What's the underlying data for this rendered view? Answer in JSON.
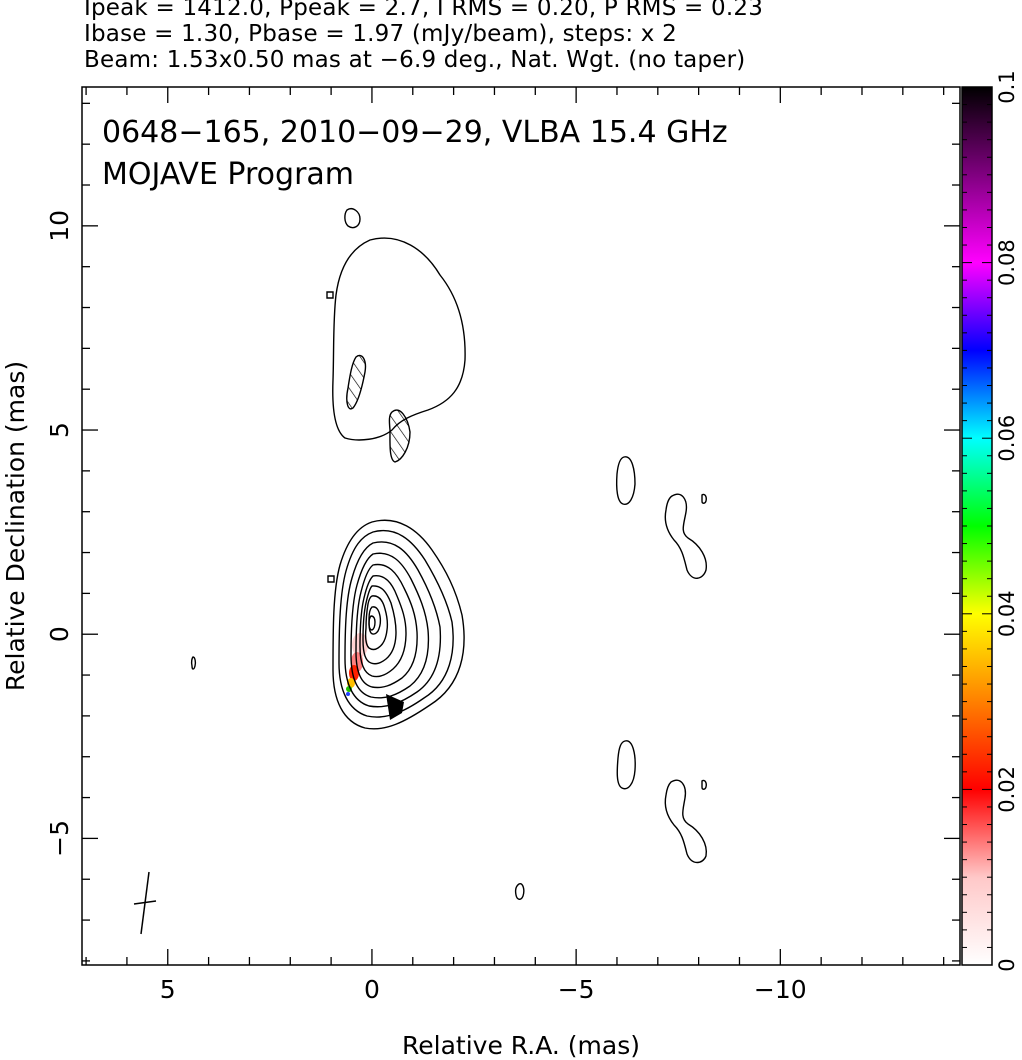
{
  "header": {
    "line1": "Ipeak = 1412.0, Ppeak = 2.7, I RMS = 0.20, P RMS = 0.23",
    "line2": "Ibase = 1.30, Pbase = 1.97 (mJy/beam), steps: x 2",
    "line3": "Beam: 1.53x0.50 mas at −6.9 deg., Nat. Wgt. (no taper)"
  },
  "chart_data": {
    "type": "contour",
    "title_line1": "0648−165, 2010−09−29, VLBA 15.4 GHz",
    "title_line2": "MOJAVE Program",
    "xlabel": "Relative R.A. (mas)",
    "ylabel": "Relative Declination (mas)",
    "xlim": [
      7.1,
      -14.4
    ],
    "ylim": [
      -8.1,
      13.4
    ],
    "x_reversed": true,
    "x_ticks": [
      {
        "v": 5,
        "label": "5"
      },
      {
        "v": 0,
        "label": "0"
      },
      {
        "v": -5,
        "label": "−5"
      },
      {
        "v": -10,
        "label": "−10"
      }
    ],
    "y_ticks": [
      {
        "v": 10,
        "label": "10"
      },
      {
        "v": 5,
        "label": "5"
      },
      {
        "v": 0,
        "label": "0"
      },
      {
        "v": -5,
        "label": "−5"
      }
    ],
    "core": {
      "x": 0.0,
      "y": 0.2
    },
    "contour_base_mJy": 1.3,
    "contour_step_factor": 2,
    "beam": {
      "major_mas": 1.53,
      "minor_mas": 0.5,
      "pa_deg": -6.9
    },
    "colorbar": {
      "min": 0,
      "max": 0.1,
      "ticks": [
        {
          "v": 0,
          "label": "0"
        },
        {
          "v": 0.02,
          "label": "0.02"
        },
        {
          "v": 0.04,
          "label": "0.04"
        },
        {
          "v": 0.06,
          "label": "0.06"
        },
        {
          "v": 0.08,
          "label": "0.08"
        },
        {
          "v": 0.1,
          "label": "0.1"
        }
      ],
      "stops": [
        "#ffffff",
        "#ffc8c8",
        "#ff0000",
        "#ff8000",
        "#ffff00",
        "#00ff00",
        "#00ffff",
        "#0000ff",
        "#ff00ff",
        "#800080",
        "#000000"
      ]
    }
  }
}
